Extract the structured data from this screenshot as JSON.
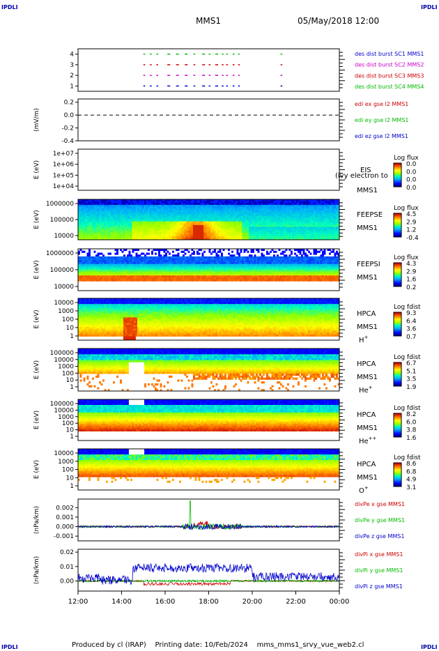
{
  "header": {
    "corner_label": "IPDLI",
    "spacecraft": "MMS1",
    "datetime": "05/May/2018 12:00"
  },
  "footer": {
    "text": "Produced by cl (IRAP)    Printing date: 10/Feb/2024    mms_mms1_srvy_vue_web2.cl"
  },
  "chart_data": [
    {
      "type": "scatter",
      "name": "burst availability",
      "ylim": [
        0.5,
        4.5
      ],
      "yticks": [
        "1",
        "2",
        "3",
        "4"
      ],
      "legend": [
        {
          "text": "des dist burst SC1 MMS1",
          "parts": [
            {
              "t": "des dist burst SC1 ",
              "c": "#0000cc"
            },
            {
              "t": "MMS1",
              "c": "#0000cc"
            }
          ]
        },
        {
          "text": "des dist burst SC2 MMS2",
          "parts": [
            {
              "t": "des dist burst SC2 ",
              "c": "#cc00cc"
            },
            {
              "t": "MMS2",
              "c": "#cc00cc"
            }
          ]
        },
        {
          "text": "des dist burst SC3 MMS3",
          "parts": [
            {
              "t": "des dist burst SC3 ",
              "c": "#cc0000"
            },
            {
              "t": "MMS3",
              "c": "#cc0000"
            }
          ]
        },
        {
          "text": "des dist burst SC4 MMS4",
          "parts": [
            {
              "t": "des dist burst SC4 ",
              "c": "#00bb00"
            },
            {
              "t": "MMS4",
              "c": "#00bb00"
            }
          ]
        }
      ],
      "series": [
        {
          "level": 4,
          "color": "#00bb00",
          "segments": [
            [
              15.0,
              15.05
            ],
            [
              15.3,
              15.35
            ],
            [
              15.6,
              15.65
            ],
            [
              16.1,
              16.2
            ],
            [
              16.5,
              16.6
            ],
            [
              16.9,
              17.0
            ],
            [
              17.3,
              17.35
            ],
            [
              17.7,
              17.8
            ],
            [
              18.0,
              18.05
            ],
            [
              18.3,
              18.4
            ],
            [
              18.6,
              18.65
            ],
            [
              18.8,
              18.85
            ],
            [
              19.1,
              19.15
            ],
            [
              19.35,
              19.4
            ],
            [
              21.3,
              21.35
            ]
          ]
        },
        {
          "level": 3,
          "color": "#cc0000",
          "segments": [
            [
              15.0,
              15.05
            ],
            [
              15.3,
              15.35
            ],
            [
              15.6,
              15.65
            ],
            [
              16.1,
              16.2
            ],
            [
              16.5,
              16.6
            ],
            [
              16.9,
              17.0
            ],
            [
              17.3,
              17.35
            ],
            [
              17.7,
              17.8
            ],
            [
              18.0,
              18.05
            ],
            [
              18.3,
              18.4
            ],
            [
              18.6,
              18.65
            ],
            [
              18.8,
              18.85
            ],
            [
              19.1,
              19.15
            ],
            [
              19.35,
              19.4
            ],
            [
              21.3,
              21.35
            ]
          ]
        },
        {
          "level": 2,
          "color": "#cc00cc",
          "segments": [
            [
              15.0,
              15.05
            ],
            [
              15.3,
              15.35
            ],
            [
              15.6,
              15.65
            ],
            [
              16.1,
              16.2
            ],
            [
              16.5,
              16.6
            ],
            [
              16.9,
              17.0
            ],
            [
              17.3,
              17.35
            ],
            [
              17.7,
              17.8
            ],
            [
              18.0,
              18.05
            ],
            [
              18.3,
              18.4
            ],
            [
              18.6,
              18.65
            ],
            [
              18.8,
              18.85
            ],
            [
              19.1,
              19.15
            ],
            [
              19.35,
              19.4
            ],
            [
              21.3,
              21.35
            ]
          ]
        },
        {
          "level": 1,
          "color": "#0000cc",
          "segments": [
            [
              15.0,
              15.05
            ],
            [
              15.3,
              15.35
            ],
            [
              15.6,
              15.65
            ],
            [
              16.1,
              16.2
            ],
            [
              16.5,
              16.6
            ],
            [
              16.9,
              17.0
            ],
            [
              17.3,
              17.35
            ],
            [
              17.7,
              17.8
            ],
            [
              18.0,
              18.05
            ],
            [
              18.3,
              18.4
            ],
            [
              18.6,
              18.65
            ],
            [
              18.8,
              18.85
            ],
            [
              19.1,
              19.15
            ],
            [
              19.35,
              19.4
            ],
            [
              21.3,
              21.35
            ]
          ]
        }
      ]
    },
    {
      "type": "line",
      "ylabel": "(mV/m)",
      "ylim": [
        -0.4,
        0.25
      ],
      "yticks": [
        "0.2",
        "0.0",
        "-0.2",
        "-0.4"
      ],
      "legend": [
        {
          "text": "edi ex gse l2 MMS1",
          "parts": [
            {
              "t": "edi ex gse l2 MMS1",
              "c": "#cc0000"
            }
          ]
        },
        {
          "text": "edi ey gse l2 MMS1",
          "parts": [
            {
              "t": "edi ey gse l2 MMS1",
              "c": "#00bb00"
            }
          ]
        },
        {
          "text": "edi ez gse l2 MMS1",
          "parts": [
            {
              "t": "edi ez gse l2 MMS1",
              "c": "#0000cc"
            }
          ]
        }
      ],
      "zero_line": true
    },
    {
      "type": "heatmap",
      "instrument": "EIS",
      "spacecraft": "MMS1",
      "ylabel": "E (eV)",
      "yticks": [
        "1e+07",
        "1e+06",
        "1e+05",
        "1e+04"
      ],
      "colorbar": {
        "title": "Log flux",
        "ticks": [
          "0.0",
          "0.0",
          "0.0",
          "0.0"
        ]
      },
      "overlay_text": "(ivy electron to",
      "empty": true
    },
    {
      "type": "heatmap",
      "instrument": "FEEPSE",
      "spacecraft": "MMS1",
      "ylabel": "E (eV)",
      "yticks": [
        "1000000",
        "100000",
        "10000"
      ],
      "colorbar": {
        "title": "Log flux",
        "ticks": [
          "4.5",
          "2.9",
          "1.2",
          "-0.4"
        ]
      }
    },
    {
      "type": "heatmap",
      "instrument": "FEEPSI",
      "spacecraft": "MMS1",
      "ylabel": "E (eV)",
      "yticks": [
        "1000000",
        "100000",
        "10000"
      ],
      "colorbar": {
        "title": "Log flux",
        "ticks": [
          "4.3",
          "2.9",
          "1.6",
          "0.2"
        ]
      }
    },
    {
      "type": "heatmap",
      "instrument": "HPCA",
      "spacecraft": "MMS1",
      "species": "H",
      "species_sup": "+",
      "ylabel": "E (eV)",
      "yticks": [
        "10000",
        "1000",
        "100",
        "10",
        "1"
      ],
      "colorbar": {
        "title": "Log fdist",
        "ticks": [
          "9.3",
          "6.4",
          "3.6",
          "0.7"
        ]
      }
    },
    {
      "type": "heatmap",
      "instrument": "HPCA",
      "spacecraft": "MMS1",
      "species": "He",
      "species_sup": "+",
      "ylabel": "E (eV)",
      "yticks": [
        "100000",
        "10000",
        "1000",
        "100",
        "10",
        "1"
      ],
      "colorbar": {
        "title": "Log fdist",
        "ticks": [
          "6.7",
          "5.1",
          "3.5",
          "1.9"
        ]
      }
    },
    {
      "type": "heatmap",
      "instrument": "HPCA",
      "spacecraft": "MMS1",
      "species": "He",
      "species_sup": "++",
      "ylabel": "E (eV)",
      "yticks": [
        "100000",
        "10000",
        "1000",
        "100",
        "10",
        "1"
      ],
      "colorbar": {
        "title": "Log fdist",
        "ticks": [
          "8.2",
          "6.0",
          "3.8",
          "1.6"
        ]
      }
    },
    {
      "type": "heatmap",
      "instrument": "HPCA",
      "spacecraft": "MMS1",
      "species": "O",
      "species_sup": "+",
      "ylabel": "E (eV)",
      "yticks": [
        "10000",
        "1000",
        "100",
        "10",
        "1"
      ],
      "colorbar": {
        "title": "Log fdist",
        "ticks": [
          "8.6",
          "6.8",
          "4.9",
          "3.1"
        ]
      }
    },
    {
      "type": "line",
      "ylabel": "(nPa/km)",
      "ylim": [
        -0.0015,
        0.0029
      ],
      "yticks": [
        "0.002",
        "0.001",
        "0.000",
        "-0.001"
      ],
      "legend": [
        {
          "text": "divPe x gse MMS1",
          "parts": [
            {
              "t": "divPe x gse MMS1",
              "c": "#cc0000"
            }
          ]
        },
        {
          "text": "divPe y gse MMS1",
          "parts": [
            {
              "t": "divPe y gse MMS1",
              "c": "#00bb00"
            }
          ]
        },
        {
          "text": "divPe z gse MMS1",
          "parts": [
            {
              "t": "divPe z gse MMS1",
              "c": "#0000cc"
            }
          ]
        }
      ]
    },
    {
      "type": "line",
      "ylabel": "(nPa/km)",
      "ylim": [
        -0.007,
        0.022
      ],
      "yticks": [
        "0.02",
        "0.01",
        "0.00"
      ],
      "legend": [
        {
          "text": "divPi x gse MMS1",
          "parts": [
            {
              "t": "divPi x gse MMS1",
              "c": "#cc0000"
            }
          ]
        },
        {
          "text": "divPi y gse MMS1",
          "parts": [
            {
              "t": "divPi y gse MMS1",
              "c": "#00bb00"
            }
          ]
        },
        {
          "text": "divPi z gse MMS1",
          "parts": [
            {
              "t": "divPi z gse MMS1",
              "c": "#0000cc"
            }
          ]
        }
      ]
    }
  ],
  "time_axis": {
    "range_hours": [
      12,
      24
    ],
    "ticks": [
      "12:00",
      "14:00",
      "16:00",
      "18:00",
      "20:00",
      "22:00",
      "00:00"
    ]
  }
}
